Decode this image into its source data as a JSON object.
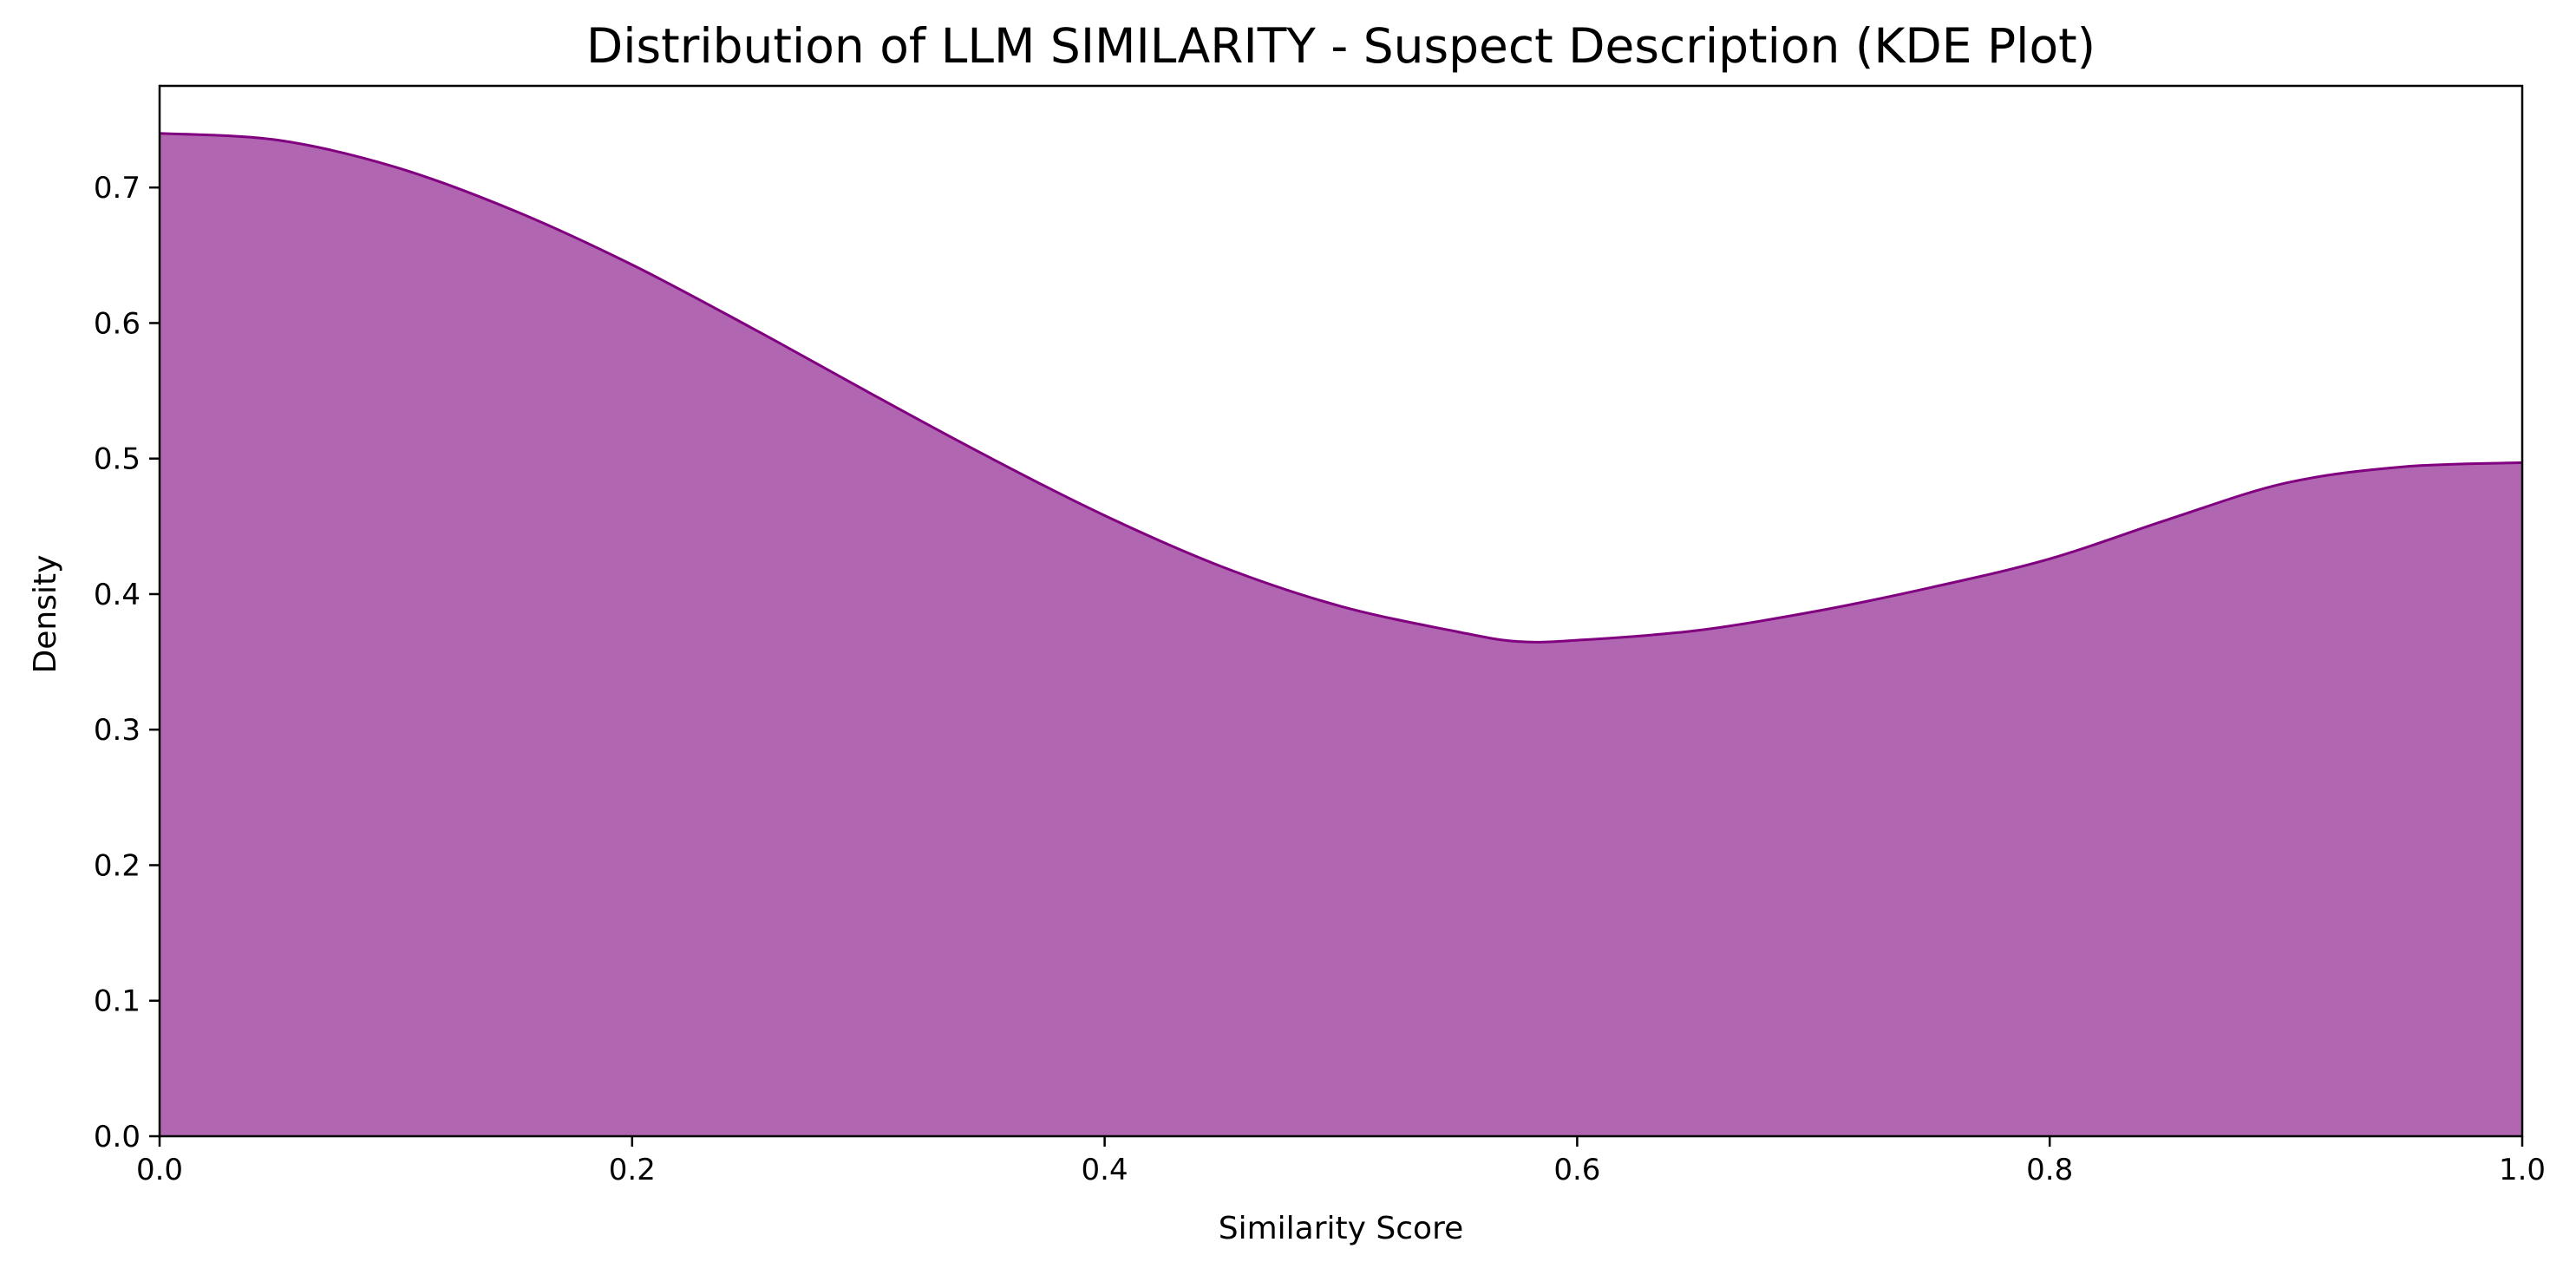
{
  "chart_data": {
    "type": "area",
    "title": "Distribution of LLM SIMILARITY - Suspect Description (KDE Plot)",
    "xlabel": "Similarity Score",
    "ylabel": "Density",
    "xlim": [
      0.0,
      1.0
    ],
    "ylim": [
      0.0,
      0.775
    ],
    "x_ticks": [
      "0.0",
      "0.2",
      "0.4",
      "0.6",
      "0.8",
      "1.0"
    ],
    "y_ticks": [
      "0.0",
      "0.1",
      "0.2",
      "0.3",
      "0.4",
      "0.5",
      "0.6",
      "0.7"
    ],
    "grid": false,
    "legend": "none",
    "fill_color": "#b066b0",
    "line_color": "#800080",
    "series": [
      {
        "x": [
          0.0,
          0.05,
          0.1,
          0.15,
          0.2,
          0.25,
          0.3,
          0.35,
          0.4,
          0.45,
          0.5,
          0.55,
          0.575,
          0.6,
          0.65,
          0.7,
          0.75,
          0.8,
          0.85,
          0.9,
          0.95,
          1.0
        ],
        "y": [
          0.74,
          0.735,
          0.715,
          0.683,
          0.643,
          0.597,
          0.549,
          0.502,
          0.458,
          0.42,
          0.391,
          0.372,
          0.365,
          0.366,
          0.373,
          0.387,
          0.405,
          0.426,
          0.455,
          0.482,
          0.494,
          0.497
        ]
      }
    ]
  }
}
